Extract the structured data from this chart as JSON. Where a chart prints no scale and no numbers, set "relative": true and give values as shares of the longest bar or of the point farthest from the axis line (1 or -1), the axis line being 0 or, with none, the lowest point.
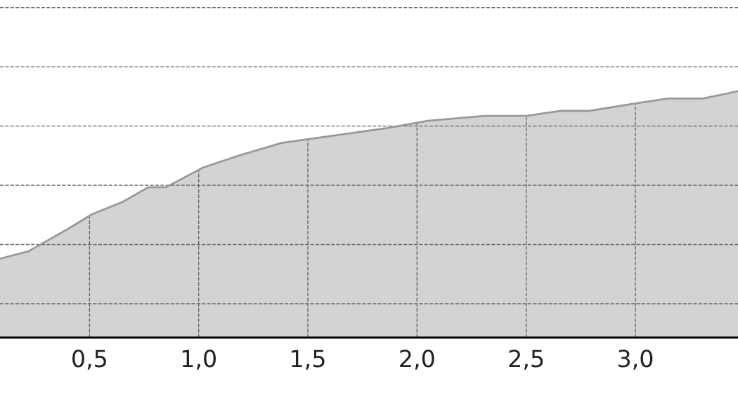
{
  "chart_data": {
    "type": "area",
    "relative": true,
    "x": [
      0.09,
      0.22,
      0.4,
      0.51,
      0.65,
      0.77,
      0.85,
      1.02,
      1.19,
      1.38,
      1.54,
      1.7,
      1.86,
      2.05,
      2.31,
      2.5,
      2.66,
      2.79,
      3.0,
      3.15,
      3.31,
      3.47
    ],
    "series": [
      {
        "color": "#999999",
        "values": [
          0.32,
          0.35,
          0.44,
          0.5,
          0.55,
          0.61,
          0.61,
          0.69,
          0.74,
          0.79,
          0.81,
          0.83,
          0.85,
          0.88,
          0.9,
          0.9,
          0.92,
          0.92,
          0.95,
          0.97,
          0.97,
          1.0
        ]
      }
    ],
    "xlim": [
      0.09,
      3.47
    ],
    "xticks": [
      {
        "value": 0.5,
        "label": "0,5"
      },
      {
        "value": 1.0,
        "label": "1,0"
      },
      {
        "value": 1.5,
        "label": "1,5"
      },
      {
        "value": 2.0,
        "label": "2,0"
      },
      {
        "value": 2.5,
        "label": "2,5"
      },
      {
        "value": 3.0,
        "label": "3,0"
      }
    ],
    "grid": true,
    "line_style": "dashed"
  }
}
